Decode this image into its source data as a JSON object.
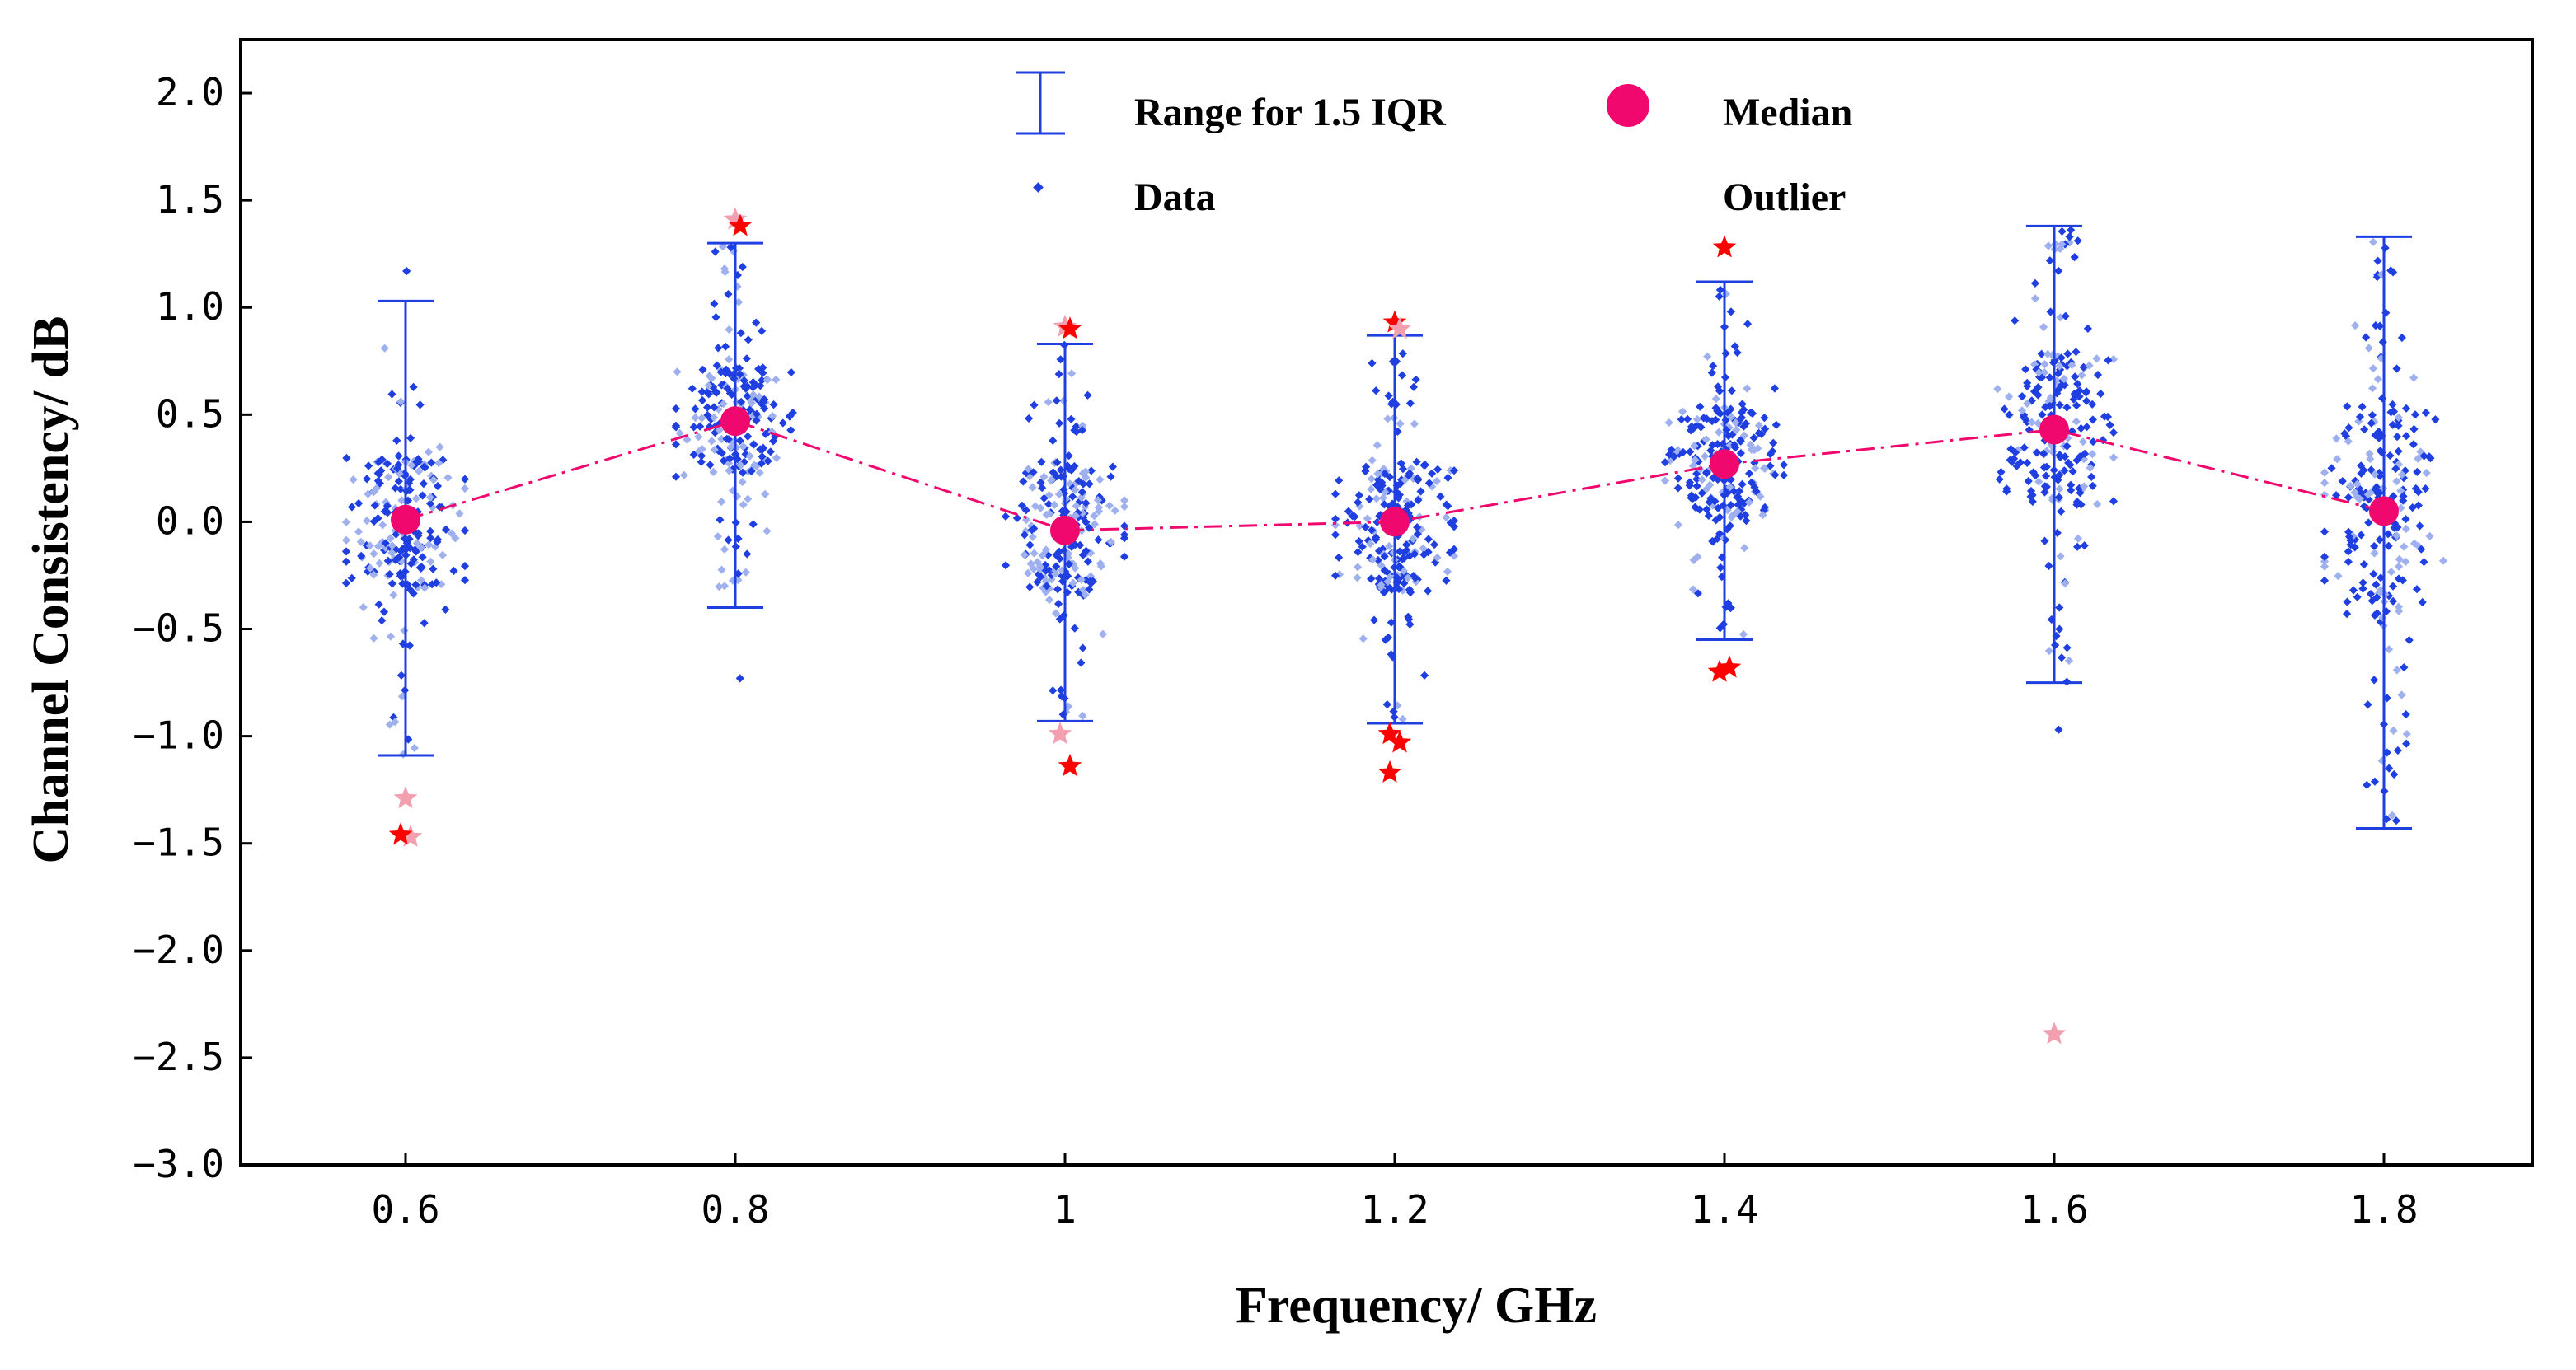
{
  "chart_data": {
    "type": "scatter",
    "title": "",
    "xlabel": "Frequency/ GHz",
    "ylabel": "Channel Consistency/ dB",
    "ylim": [
      -3.0,
      2.25
    ],
    "y_ticks": [
      2.0,
      1.5,
      1.0,
      0.5,
      0.0,
      -0.5,
      -1.0,
      -1.5,
      -2.0,
      -2.5,
      -3.0
    ],
    "y_tick_labels": [
      "2.0",
      "1.5",
      "1.0",
      "0.5",
      "0.0",
      "-0.5",
      "-1.0",
      "-1.5",
      "-2.0",
      "-2.5",
      "-3.0"
    ],
    "categories": [
      "0.6",
      "0.8",
      "1",
      "1.2",
      "1.4",
      "1.6",
      "1.8"
    ],
    "legend": {
      "position": "top-center",
      "entries": [
        "Range for 1.5 IQR",
        "Median",
        "Data",
        "Outlier"
      ]
    },
    "colors": {
      "data": "#1f3fe0",
      "data_light": "#9fb0ee",
      "whisker": "#1f3fe0",
      "median": "#f0086e",
      "median_line": "#f0086e",
      "outlier": "#ff0000",
      "outlier_light": "#f2a0b0"
    },
    "medians": [
      0.01,
      0.47,
      -0.04,
      0.0,
      0.27,
      0.43,
      0.05
    ],
    "whiskers": [
      {
        "low": -1.09,
        "high": 1.03
      },
      {
        "low": -0.4,
        "high": 1.3
      },
      {
        "low": -0.93,
        "high": 0.83
      },
      {
        "low": -0.94,
        "high": 0.87
      },
      {
        "low": -0.55,
        "high": 1.12
      },
      {
        "low": -0.75,
        "high": 1.38
      },
      {
        "low": -1.43,
        "high": 1.33
      }
    ],
    "spread": [
      {
        "q1": -0.35,
        "q3": 0.3
      },
      {
        "q1": 0.22,
        "q3": 0.72
      },
      {
        "q1": -0.33,
        "q3": 0.28
      },
      {
        "q1": -0.33,
        "q3": 0.28
      },
      {
        "q1": 0.02,
        "q3": 0.55
      },
      {
        "q1": 0.08,
        "q3": 0.8
      },
      {
        "q1": -0.45,
        "q3": 0.55
      }
    ],
    "outliers": [
      [
        {
          "y": -1.29,
          "light": true
        },
        {
          "y": -1.47,
          "light": true
        },
        {
          "y": -1.46,
          "light": false
        }
      ],
      [
        {
          "y": 1.41,
          "light": true
        },
        {
          "y": 1.38,
          "light": false
        }
      ],
      [
        {
          "y": 0.91,
          "light": true
        },
        {
          "y": 0.9,
          "light": false
        },
        {
          "y": -0.99,
          "light": true
        },
        {
          "y": -1.14,
          "light": false
        }
      ],
      [
        {
          "y": 0.93,
          "light": false
        },
        {
          "y": 0.9,
          "light": true
        },
        {
          "y": -0.99,
          "light": false
        },
        {
          "y": -1.03,
          "light": false
        },
        {
          "y": -1.17,
          "light": false
        }
      ],
      [
        {
          "y": 1.28,
          "light": false
        },
        {
          "y": -0.68,
          "light": false
        },
        {
          "y": -0.7,
          "light": false
        }
      ],
      [
        {
          "y": -2.39,
          "light": true
        }
      ],
      []
    ],
    "stray_points": [
      [
        {
          "y": 1.17
        }
      ],
      [
        {
          "y": -0.73
        }
      ],
      [],
      [],
      [],
      [
        {
          "y": -0.97
        }
      ],
      []
    ]
  }
}
